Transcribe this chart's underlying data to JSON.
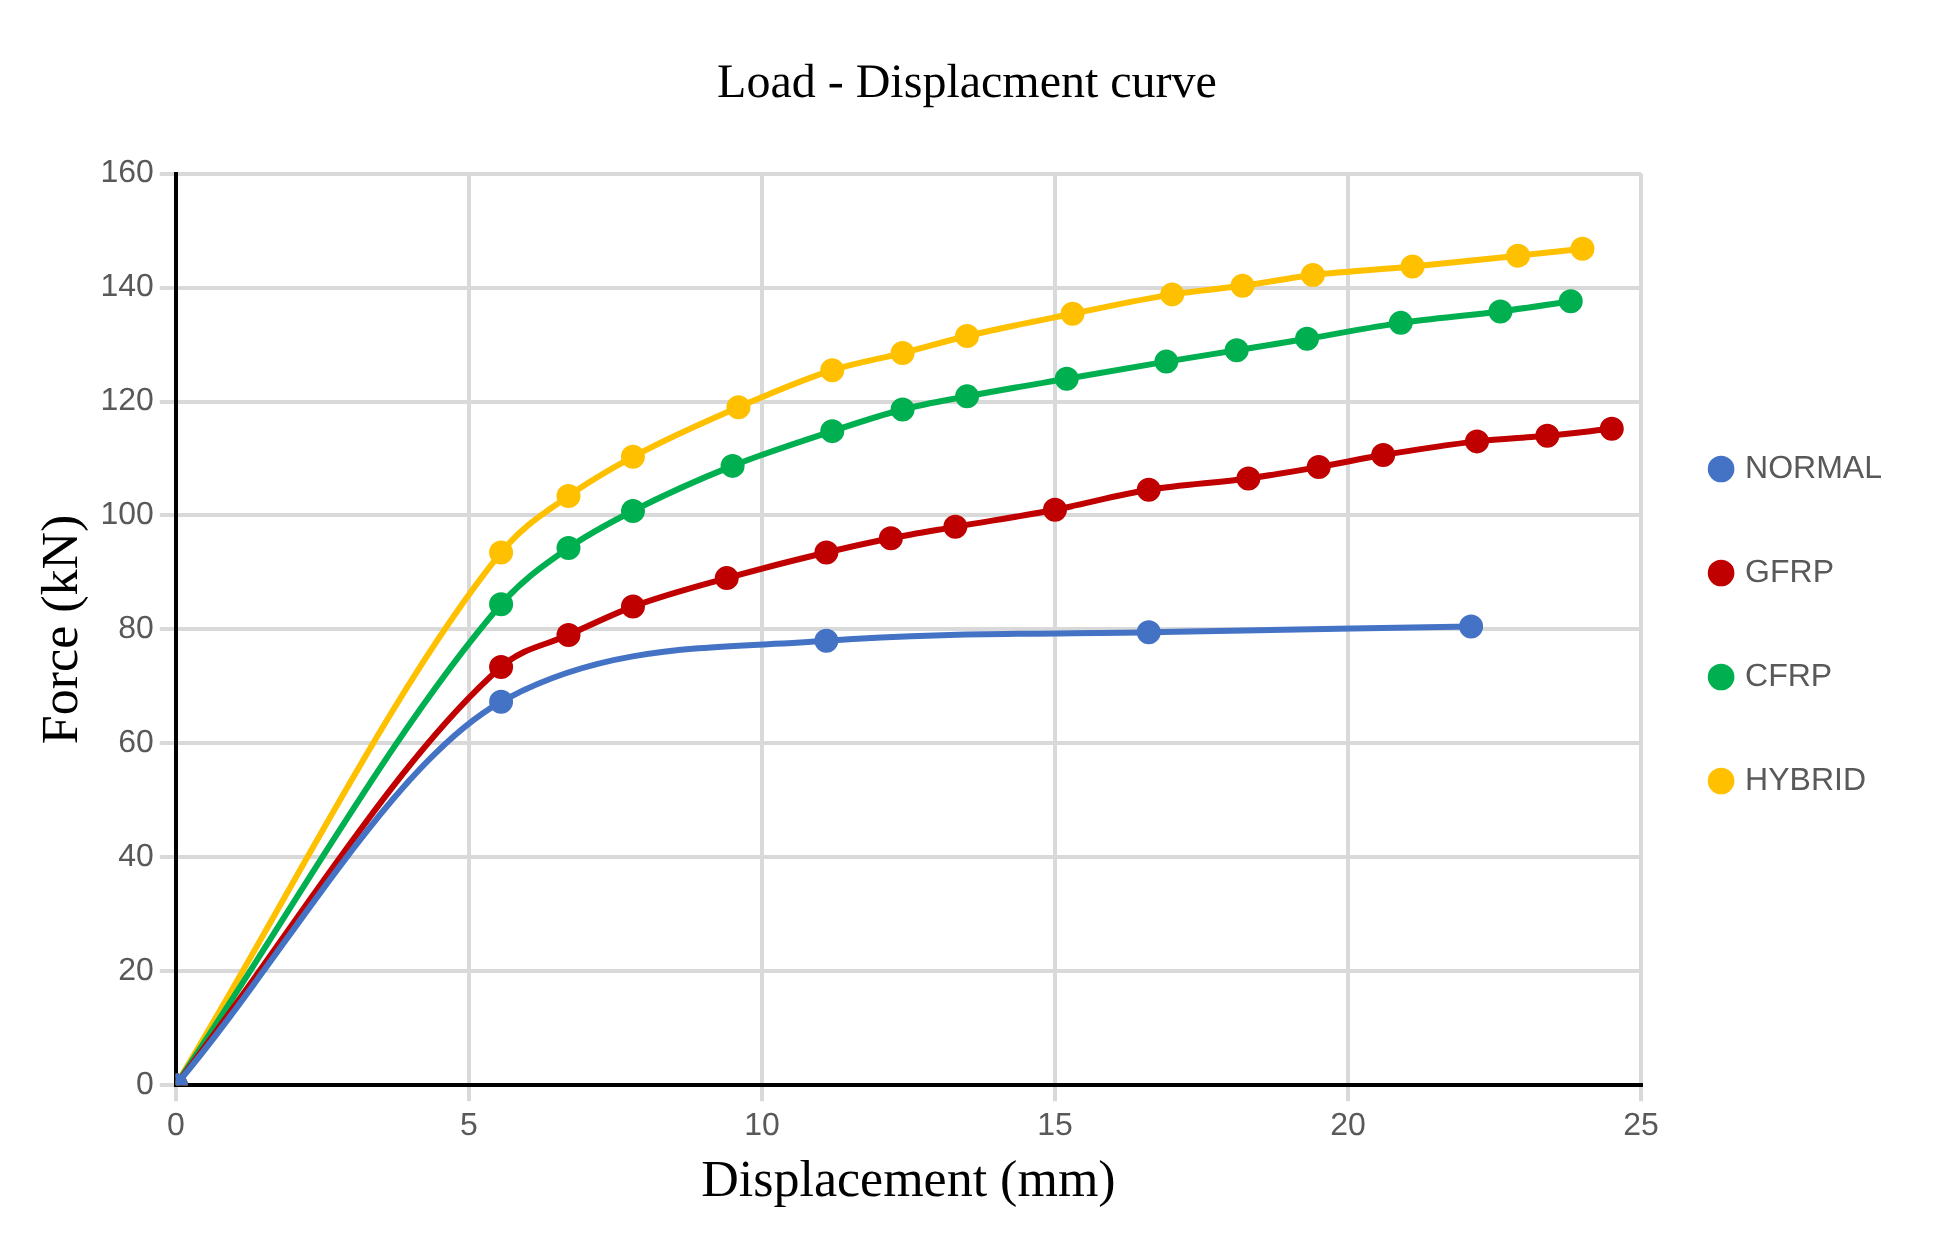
{
  "chart_data": {
    "type": "line",
    "title": "Load - Displacment curve",
    "xlabel": "Displacement (mm)",
    "ylabel": "Force (kN)",
    "xlim": [
      0,
      25
    ],
    "xticks": [
      0,
      5,
      10,
      15,
      20,
      25
    ],
    "ylim": [
      0,
      160
    ],
    "yticks": [
      0,
      20,
      40,
      60,
      80,
      100,
      120,
      140,
      160
    ],
    "grid": true,
    "legend": "right",
    "marker": "circle",
    "line_style": "solid",
    "series": [
      {
        "name": "NORMAL",
        "color": "#4472c4",
        "x": [
          0,
          5.55,
          11.1,
          16.6,
          22.1
        ],
        "values": [
          0,
          67.3,
          78,
          79.5,
          80.5
        ]
      },
      {
        "name": "GFRP",
        "color": "#c00000",
        "x": [
          0,
          5.55,
          6.7,
          7.8,
          9.4,
          11.1,
          12.2,
          13.3,
          15,
          16.6,
          18.3,
          19.5,
          20.6,
          22.2,
          23.4,
          24.5
        ],
        "values": [
          0,
          73.4,
          79,
          84,
          89,
          93.5,
          96,
          98,
          101,
          104.5,
          106.5,
          108.5,
          110.6,
          113,
          114,
          115.2
        ]
      },
      {
        "name": "CFRP",
        "color": "#00b050",
        "x": [
          0,
          5.55,
          6.7,
          7.8,
          9.5,
          11.2,
          12.4,
          13.5,
          15.2,
          16.9,
          18.1,
          19.3,
          20.9,
          22.6,
          23.8
        ],
        "values": [
          0,
          84.4,
          94.3,
          100.8,
          108.7,
          114.8,
          118.6,
          120.9,
          124,
          127,
          129,
          131,
          133.8,
          135.8,
          137.6
        ]
      },
      {
        "name": "HYBRID",
        "color": "#ffc000",
        "x": [
          0,
          5.55,
          6.7,
          7.8,
          9.6,
          11.2,
          12.4,
          13.5,
          15.3,
          17,
          18.2,
          19.4,
          21.1,
          22.9,
          24
        ],
        "values": [
          0,
          93.5,
          103.4,
          110.3,
          119,
          125.5,
          128.5,
          131.5,
          135.4,
          138.8,
          140.3,
          142.2,
          143.7,
          145.6,
          146.8
        ]
      }
    ]
  }
}
